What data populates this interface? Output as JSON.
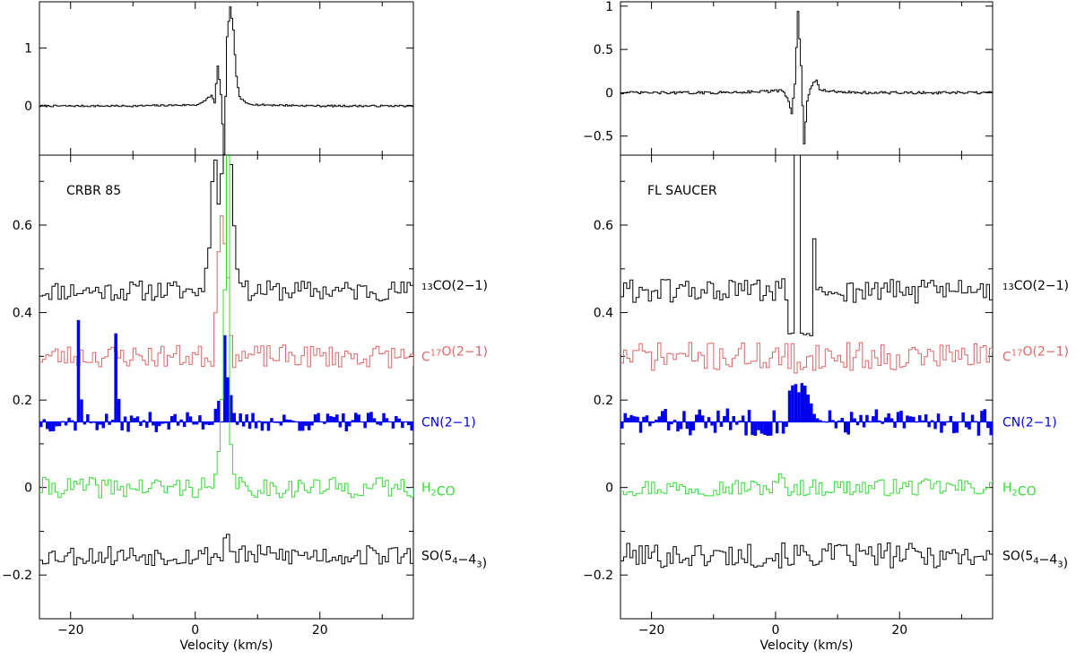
{
  "chart_data": [
    {
      "type": "line",
      "panel": "left",
      "xlabel": "Velocity (km/s)",
      "xlim": [
        -25,
        35
      ],
      "x_ticks": [
        -20,
        0,
        20
      ],
      "top": {
        "ylim": [
          -0.85,
          1.8
        ],
        "y_ticks": [
          0,
          1
        ],
        "series": [
          {
            "color": "#000000",
            "x": [
              -25,
              -10,
              -5,
              0,
              1,
              2,
              2.5,
              3,
              3.5,
              4,
              4.5,
              5,
              5.5,
              6,
              6.5,
              7,
              8,
              10,
              15,
              20,
              30,
              35
            ],
            "y": [
              0,
              0,
              0.01,
              0.02,
              0.05,
              0.15,
              0.18,
              0.05,
              0.7,
              0.2,
              -0.85,
              1.2,
              1.7,
              1.3,
              0.5,
              0.15,
              0.05,
              0.02,
              0.01,
              0,
              0,
              0
            ]
          }
        ]
      },
      "bottom": {
        "ylim": [
          -0.3,
          0.76
        ],
        "y_ticks": [
          -0.2,
          0,
          0.2,
          0.4,
          0.6
        ],
        "panel_label": "CRBR 85",
        "series": [
          {
            "label": "¹³CO(2−1)",
            "label_parts": [
              [
                "sup",
                "13"
              ],
              [
                "n",
                "CO(2−1)"
              ]
            ],
            "color": "#000000",
            "baseline": 0.45,
            "noise": 0.018,
            "fill": false,
            "seed": 11,
            "features": [
              [
                1.5,
                0.05
              ],
              [
                2,
                0.1
              ],
              [
                2.5,
                0.25
              ],
              [
                3,
                0.3
              ],
              [
                3.5,
                0.2
              ],
              [
                4,
                0.27
              ],
              [
                4.5,
                0.35
              ],
              [
                5,
                0.34
              ],
              [
                5.5,
                0.29
              ],
              [
                6,
                0.15
              ],
              [
                6.5,
                0.05
              ],
              [
                7,
                0.02
              ]
            ]
          },
          {
            "label": "C¹⁷O(2−1)",
            "label_parts": [
              [
                "n",
                "C"
              ],
              [
                "sup",
                "17"
              ],
              [
                "n",
                "O(2−1)"
              ]
            ],
            "color": "#e06666",
            "baseline": 0.3,
            "noise": 0.02,
            "fill": false,
            "seed": 23,
            "features": [
              [
                3,
                0.1
              ],
              [
                3.5,
                0.24
              ],
              [
                4,
                0.32
              ],
              [
                4.5,
                0.26
              ],
              [
                5,
                0.18
              ],
              [
                5.5,
                0.05
              ]
            ]
          },
          {
            "label": "CN(2−1)",
            "label_parts": [
              [
                "n",
                "CN(2−1)"
              ]
            ],
            "color": "#0000ee",
            "baseline": 0.15,
            "noise": 0.018,
            "fill": true,
            "seed": 37,
            "features": [
              [
                -19,
                0.235
              ],
              [
                -18.5,
                0.05
              ],
              [
                -13,
                0.2
              ],
              [
                -12.5,
                0.05
              ],
              [
                3,
                0.03
              ],
              [
                3.5,
                0.05
              ],
              [
                4.5,
                0.2
              ],
              [
                5,
                0.1
              ],
              [
                5.5,
                0.06
              ]
            ]
          },
          {
            "label": "H₂CO",
            "label_parts": [
              [
                "n",
                "H"
              ],
              [
                "sub",
                "2"
              ],
              [
                "n",
                "CO"
              ]
            ],
            "color": "#33dd33",
            "baseline": 0.0,
            "noise": 0.018,
            "fill": false,
            "seed": 41,
            "features": [
              [
                3,
                0.03
              ],
              [
                3.5,
                0.08
              ],
              [
                4,
                0.2
              ],
              [
                4.5,
                0.45
              ],
              [
                5,
                0.76
              ],
              [
                5.5,
                0.1
              ],
              [
                6,
                0.03
              ]
            ]
          },
          {
            "label": "SO(5₄−4₃)",
            "label_parts": [
              [
                "n",
                "SO(5"
              ],
              [
                "sub",
                "4"
              ],
              [
                "n",
                "−4"
              ],
              [
                "sub",
                "3"
              ],
              [
                "n",
                ")"
              ]
            ],
            "color": "#000000",
            "baseline": -0.155,
            "noise": 0.018,
            "fill": false,
            "seed": 53,
            "features": [
              [
                4.5,
                0.04
              ],
              [
                5,
                0.05
              ]
            ]
          }
        ]
      }
    },
    {
      "type": "line",
      "panel": "right",
      "xlabel": "Velocity (km/s)",
      "xlim": [
        -25,
        35
      ],
      "x_ticks": [
        -20,
        0,
        20
      ],
      "top": {
        "ylim": [
          -0.72,
          1.05
        ],
        "y_ticks": [
          -0.5,
          0,
          0.5,
          1
        ],
        "series": [
          {
            "color": "#000000",
            "x": [
              -25,
              -10,
              -5,
              0,
              1,
              2,
              2.5,
              3,
              3.5,
              4,
              4.5,
              5,
              5.5,
              6,
              6.5,
              7,
              8,
              10,
              15,
              20,
              30,
              35
            ],
            "y": [
              0,
              0,
              0.01,
              0.02,
              0.03,
              -0.1,
              -0.25,
              0.1,
              0.95,
              0.3,
              -0.6,
              -0.1,
              0.05,
              0.12,
              0.15,
              0.05,
              0.02,
              0.01,
              0,
              0,
              0,
              0
            ]
          }
        ]
      },
      "bottom": {
        "ylim": [
          -0.3,
          0.76
        ],
        "y_ticks": [
          -0.2,
          0,
          0.2,
          0.4,
          0.6
        ],
        "panel_label": "FL SAUCER",
        "series": [
          {
            "label": "¹³CO(2−1)",
            "label_parts": [
              [
                "sup",
                "13"
              ],
              [
                "n",
                "CO(2−1)"
              ]
            ],
            "color": "#000000",
            "baseline": 0.45,
            "noise": 0.022,
            "fill": false,
            "seed": 61,
            "features": [
              [
                2,
                -0.1
              ],
              [
                2.5,
                -0.1
              ],
              [
                3,
                0.33
              ],
              [
                3.5,
                0.33
              ],
              [
                4,
                -0.1
              ],
              [
                4.5,
                -0.1
              ],
              [
                5,
                -0.1
              ],
              [
                5.5,
                -0.1
              ],
              [
                6,
                0.12
              ],
              [
                6.5,
                0.0
              ]
            ]
          },
          {
            "label": "C¹⁷O(2−1)",
            "label_parts": [
              [
                "n",
                "C"
              ],
              [
                "sup",
                "17"
              ],
              [
                "n",
                "O(2−1)"
              ]
            ],
            "color": "#e06666",
            "baseline": 0.3,
            "noise": 0.025,
            "fill": false,
            "seed": 71,
            "features": [
              [
                2,
                -0.03
              ],
              [
                3,
                -0.04
              ],
              [
                4,
                -0.03
              ]
            ]
          },
          {
            "label": "CN(2−1)",
            "label_parts": [
              [
                "n",
                "CN(2−1)"
              ]
            ],
            "color": "#0000ee",
            "baseline": 0.15,
            "noise": 0.025,
            "fill": true,
            "seed": 83,
            "features": [
              [
                2,
                0.07
              ],
              [
                2.5,
                0.085
              ],
              [
                3,
                0.09
              ],
              [
                3.5,
                0.07
              ],
              [
                4,
                0.09
              ],
              [
                4.5,
                0.08
              ],
              [
                5,
                0.06
              ],
              [
                5.5,
                0.04
              ]
            ]
          },
          {
            "label": "H₂CO",
            "label_parts": [
              [
                "n",
                "H"
              ],
              [
                "sub",
                "2"
              ],
              [
                "n",
                "CO"
              ]
            ],
            "color": "#33dd33",
            "baseline": 0.0,
            "noise": 0.015,
            "fill": false,
            "seed": 97,
            "features": [
              [
                0.5,
                0.03
              ],
              [
                1,
                0.02
              ]
            ]
          },
          {
            "label": "SO(5₄−4₃)",
            "label_parts": [
              [
                "n",
                "SO(5"
              ],
              [
                "sub",
                "4"
              ],
              [
                "n",
                "−4"
              ],
              [
                "sub",
                "3"
              ],
              [
                "n",
                ")"
              ]
            ],
            "color": "#000000",
            "baseline": -0.155,
            "noise": 0.022,
            "fill": false,
            "seed": 101,
            "features": []
          }
        ]
      }
    }
  ]
}
